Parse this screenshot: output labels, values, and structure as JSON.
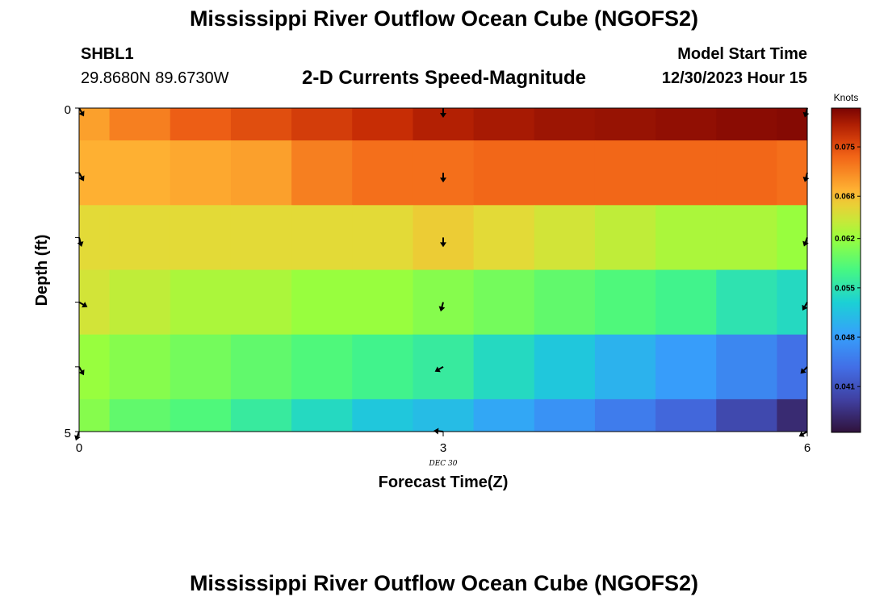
{
  "page": {
    "title": "Mississippi River Outflow Ocean Cube (NGOFS2)",
    "title_repeat": "Mississippi River Outflow Ocean Cube (NGOFS2)",
    "station_name": "SHBL1",
    "station_coords": "29.8680N  89.6730W",
    "subtitle": "2-D Currents Speed-Magnitude",
    "model_start_label": "Model Start Time",
    "model_start_value": "12/30/2023 Hour 15"
  },
  "chart_data": {
    "type": "heatmap",
    "title": "2-D Currents Speed-Magnitude",
    "xlabel": "Forecast Time(Z)",
    "ylabel": "Depth (ft)",
    "x_ticks": [
      "0",
      "3",
      "6"
    ],
    "y_ticks": [
      "0",
      "5"
    ],
    "date_annotation": "DEC  30",
    "colorbar_label": "Knots",
    "colorbar_ticks": [
      "0.075",
      "0.068",
      "0.062",
      "0.055",
      "0.048",
      "0.041"
    ],
    "colorbar_tick_values": [
      0.075,
      0.068,
      0.062,
      0.055,
      0.048,
      0.041
    ],
    "colorbar_range": [
      0.0345,
      0.0805
    ],
    "xlim": [
      0,
      6
    ],
    "ylim": [
      0,
      5
    ],
    "x_centers": [
      0,
      0.5,
      1,
      1.5,
      2,
      2.5,
      3,
      3.5,
      4,
      4.5,
      5,
      5.5,
      6
    ],
    "y_centers": [
      0,
      1,
      2,
      3,
      4,
      5
    ],
    "values": [
      [
        0.07,
        0.072,
        0.074,
        0.075,
        0.076,
        0.077,
        0.078,
        0.0785,
        0.079,
        0.0792,
        0.0795,
        0.0798,
        0.08
      ],
      [
        0.069,
        0.069,
        0.0695,
        0.07,
        0.072,
        0.073,
        0.073,
        0.0735,
        0.0735,
        0.0735,
        0.0735,
        0.0735,
        0.073
      ],
      [
        0.066,
        0.066,
        0.066,
        0.066,
        0.066,
        0.066,
        0.067,
        0.066,
        0.065,
        0.064,
        0.063,
        0.063,
        0.062
      ],
      [
        0.065,
        0.064,
        0.063,
        0.063,
        0.062,
        0.062,
        0.061,
        0.06,
        0.059,
        0.058,
        0.057,
        0.055,
        0.054
      ],
      [
        0.062,
        0.061,
        0.06,
        0.059,
        0.058,
        0.057,
        0.056,
        0.054,
        0.052,
        0.05,
        0.048,
        0.046,
        0.044
      ],
      [
        0.061,
        0.059,
        0.058,
        0.056,
        0.054,
        0.052,
        0.051,
        0.049,
        0.047,
        0.045,
        0.043,
        0.04,
        0.037
      ]
    ],
    "vectors": [
      {
        "x": 0,
        "y": 0,
        "angle": 150
      },
      {
        "x": 3,
        "y": 0,
        "angle": 180
      },
      {
        "x": 6,
        "y": 0,
        "angle": 195
      },
      {
        "x": 0,
        "y": 1,
        "angle": 150
      },
      {
        "x": 3,
        "y": 1,
        "angle": 180
      },
      {
        "x": 6,
        "y": 1,
        "angle": 195
      },
      {
        "x": 0,
        "y": 2,
        "angle": 165
      },
      {
        "x": 3,
        "y": 2,
        "angle": 180
      },
      {
        "x": 6,
        "y": 2,
        "angle": 200
      },
      {
        "x": 0,
        "y": 3,
        "angle": 120
      },
      {
        "x": 3,
        "y": 3,
        "angle": 195
      },
      {
        "x": 6,
        "y": 3,
        "angle": 210
      },
      {
        "x": 0,
        "y": 4,
        "angle": 150
      },
      {
        "x": 3,
        "y": 4,
        "angle": 240
      },
      {
        "x": 6,
        "y": 4,
        "angle": 225
      },
      {
        "x": 0,
        "y": 5,
        "angle": 200
      },
      {
        "x": 3,
        "y": 5,
        "angle": 275
      },
      {
        "x": 6,
        "y": 5,
        "angle": 240
      }
    ]
  }
}
